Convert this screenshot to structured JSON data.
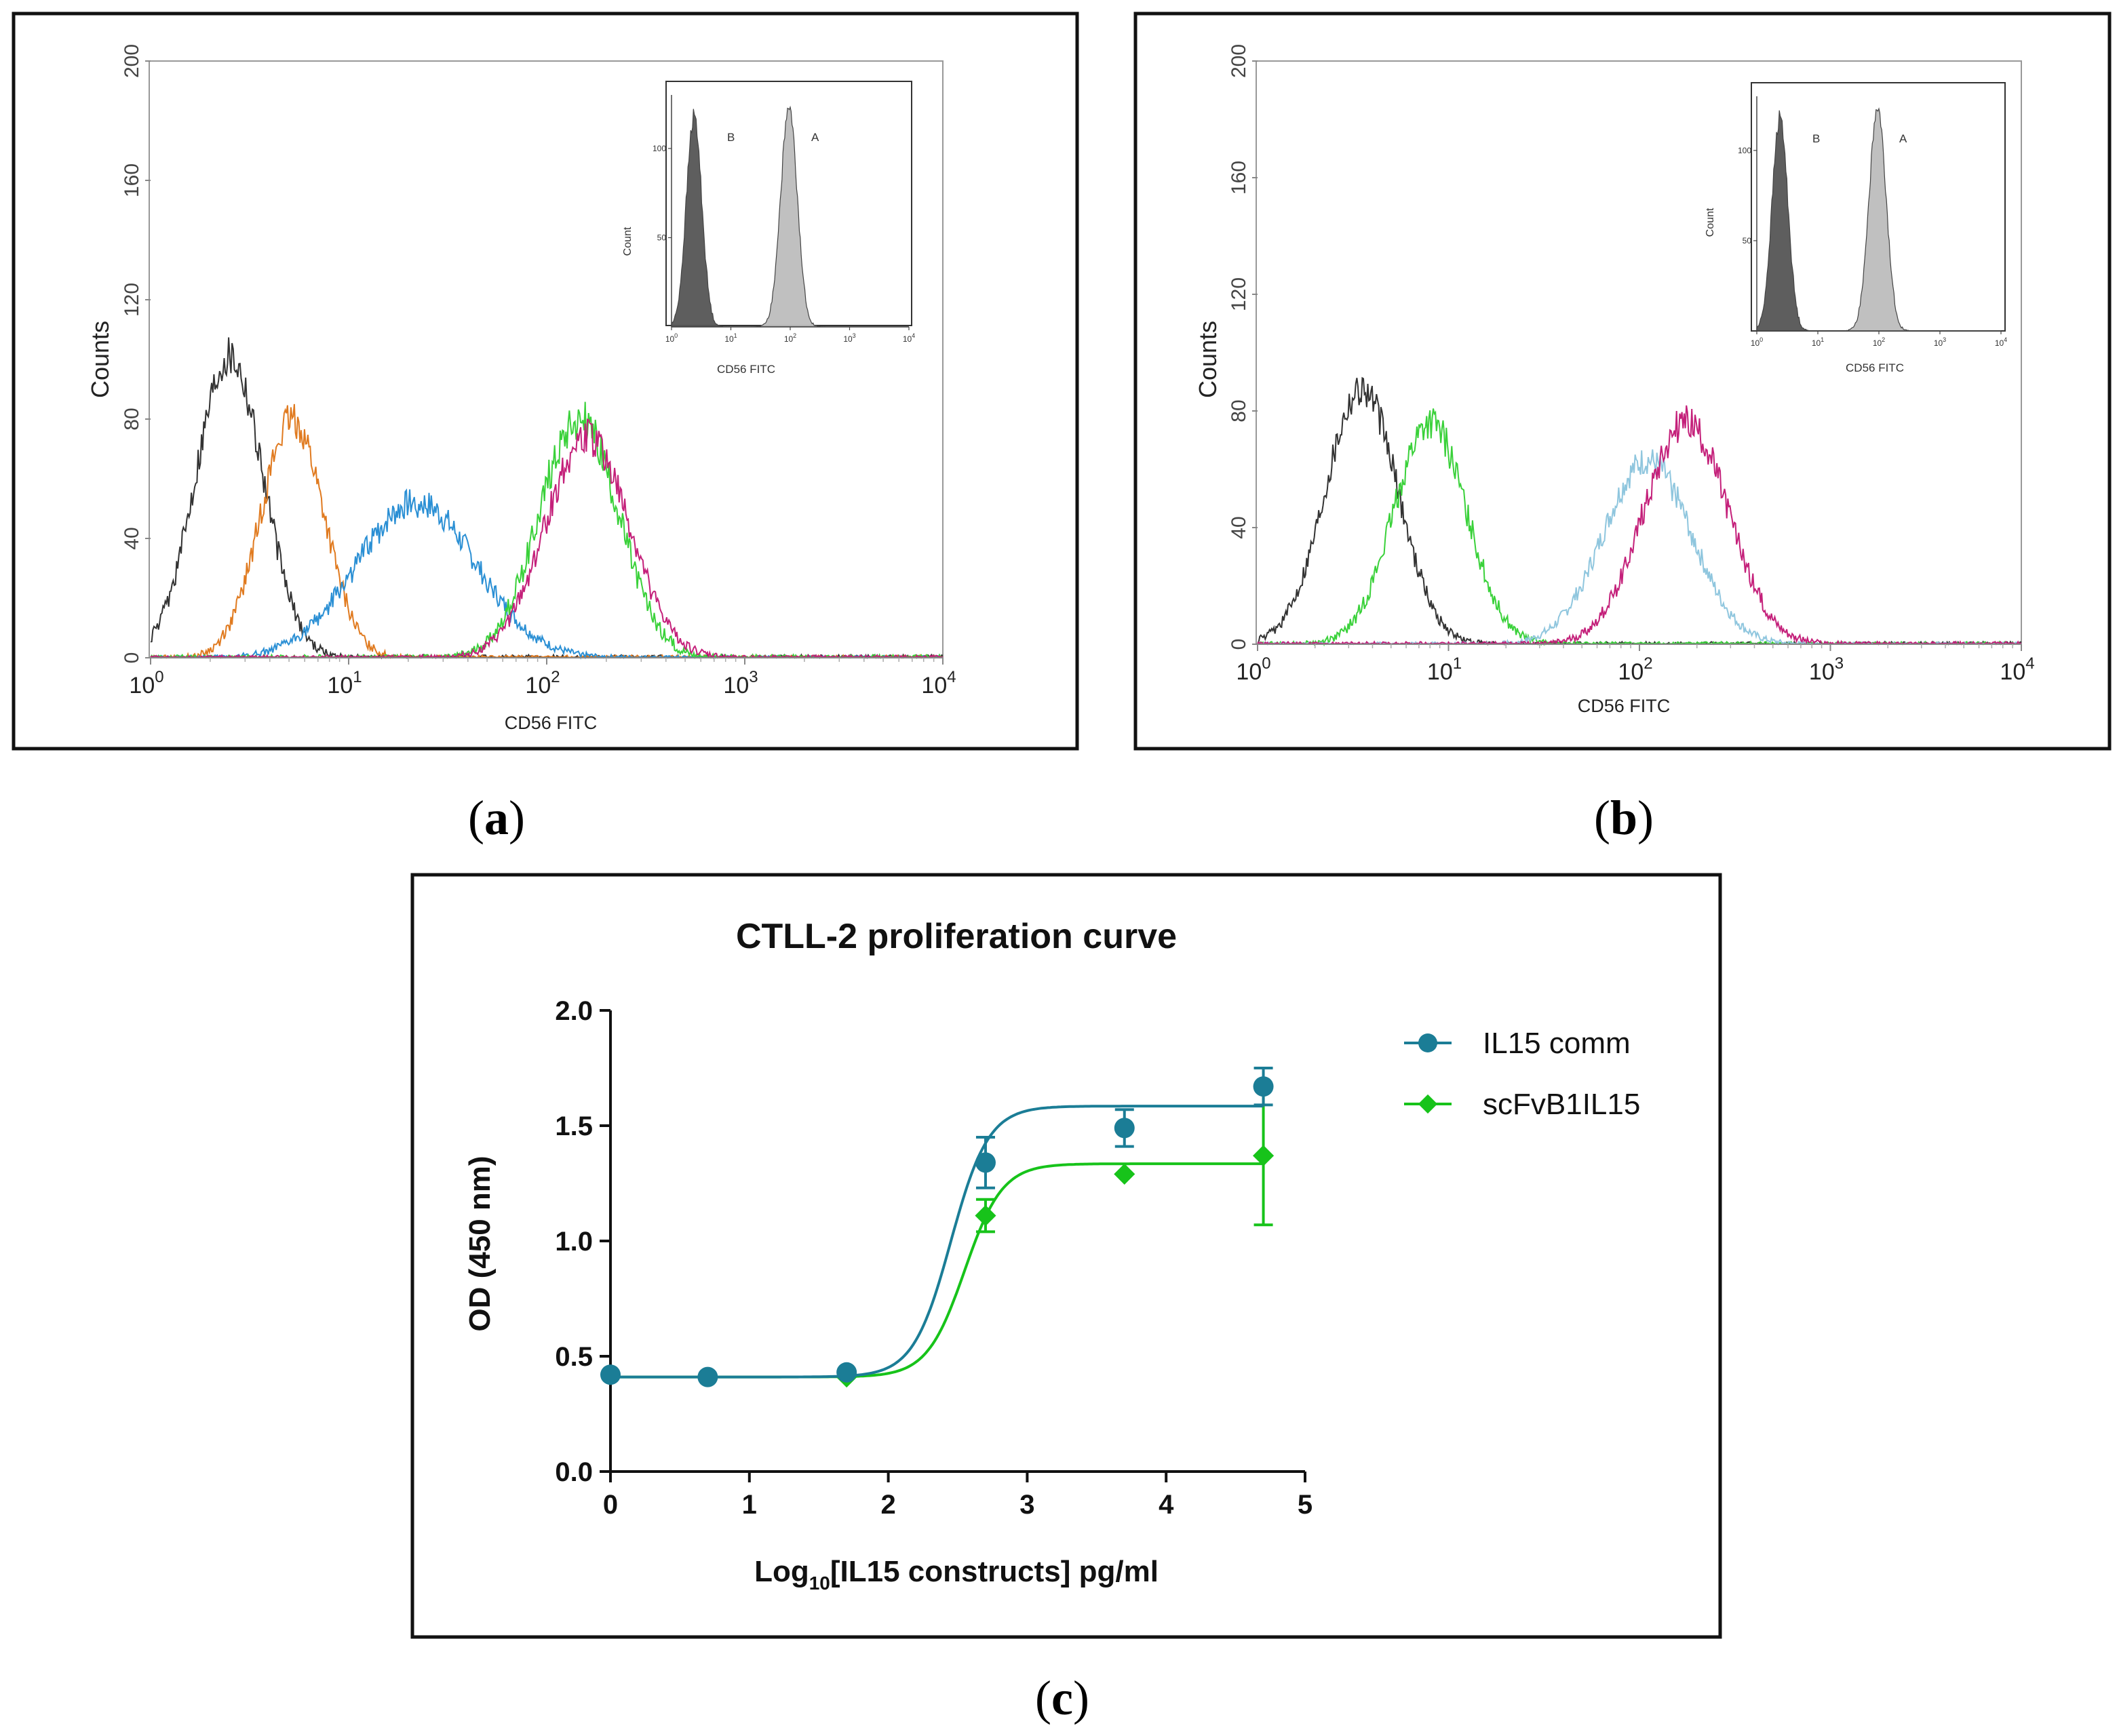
{
  "panels": {
    "a": {
      "label_open": "(",
      "label_letter": "a",
      "label_close": ")"
    },
    "b": {
      "label_open": "(",
      "label_letter": "b",
      "label_close": ")"
    },
    "c": {
      "label_open": "(",
      "label_letter": "c",
      "label_close": ")"
    }
  },
  "chart_data": [
    {
      "id": "a",
      "type": "line",
      "subtype": "flow-cytometry-histogram",
      "title": "",
      "xlabel": "CD56 FITC",
      "ylabel": "Counts",
      "xscale": "log",
      "xlim": [
        1,
        10000
      ],
      "ylim": [
        0,
        200
      ],
      "x_ticks": [
        {
          "base": "10",
          "exp": "0"
        },
        {
          "base": "10",
          "exp": "1"
        },
        {
          "base": "10",
          "exp": "2"
        },
        {
          "base": "10",
          "exp": "3"
        },
        {
          "base": "10",
          "exp": "4"
        }
      ],
      "y_ticks": [
        "0",
        "40",
        "80",
        "120",
        "160",
        "200"
      ],
      "y_tick_values": [
        0,
        40,
        80,
        120,
        160,
        200
      ],
      "series": [
        {
          "name": "black",
          "color": "#333333",
          "peak_x": 2.5,
          "peak_y": 102,
          "sigma_log": 0.17,
          "noise": 7
        },
        {
          "name": "orange",
          "color": "#e07a1f",
          "peak_x": 5.2,
          "peak_y": 80,
          "sigma_log": 0.16,
          "noise": 6
        },
        {
          "name": "blue",
          "color": "#2a8fd4",
          "peak_x": 22,
          "peak_y": 52,
          "sigma_log": 0.3,
          "noise": 5
        },
        {
          "name": "green",
          "color": "#3ad13a",
          "peak_x": 145,
          "peak_y": 80,
          "sigma_log": 0.2,
          "noise": 7
        },
        {
          "name": "magenta",
          "color": "#c4207a",
          "peak_x": 160,
          "peak_y": 74,
          "sigma_log": 0.21,
          "noise": 6
        }
      ],
      "inset": {
        "xlabel": "CD56 FITC",
        "ylabel": "Count",
        "y_ticks": [
          "50",
          "100"
        ],
        "y_tick_values": [
          50,
          100
        ],
        "ylim": [
          0,
          130
        ],
        "x_ticks": [
          {
            "base": "10",
            "exp": "0"
          },
          {
            "base": "10",
            "exp": "1"
          },
          {
            "base": "10",
            "exp": "2"
          },
          {
            "base": "10",
            "exp": "3"
          },
          {
            "base": "10",
            "exp": "4"
          }
        ],
        "series": [
          {
            "name": "B",
            "color": "#555555",
            "peak_x": 2.4,
            "peak_y": 118,
            "sigma_log": 0.13
          },
          {
            "name": "A",
            "color": "#bdbdbd",
            "peak_x": 95,
            "peak_y": 122,
            "sigma_log": 0.14
          }
        ]
      }
    },
    {
      "id": "b",
      "type": "line",
      "subtype": "flow-cytometry-histogram",
      "title": "",
      "xlabel": "CD56 FITC",
      "ylabel": "Counts",
      "xscale": "log",
      "xlim": [
        1,
        10000
      ],
      "ylim": [
        0,
        200
      ],
      "x_ticks": [
        {
          "base": "10",
          "exp": "0"
        },
        {
          "base": "10",
          "exp": "1"
        },
        {
          "base": "10",
          "exp": "2"
        },
        {
          "base": "10",
          "exp": "3"
        },
        {
          "base": "10",
          "exp": "4"
        }
      ],
      "y_ticks": [
        "0",
        "40",
        "80",
        "120",
        "160",
        "200"
      ],
      "y_tick_values": [
        0,
        40,
        80,
        120,
        160,
        200
      ],
      "series": [
        {
          "name": "black",
          "color": "#333333",
          "peak_x": 3.5,
          "peak_y": 88,
          "sigma_log": 0.19,
          "noise": 6
        },
        {
          "name": "green",
          "color": "#3ad13a",
          "peak_x": 8,
          "peak_y": 76,
          "sigma_log": 0.19,
          "noise": 6
        },
        {
          "name": "light-blue",
          "color": "#8fc6de",
          "peak_x": 110,
          "peak_y": 63,
          "sigma_log": 0.23,
          "noise": 5
        },
        {
          "name": "magenta",
          "color": "#c4207a",
          "peak_x": 175,
          "peak_y": 76,
          "sigma_log": 0.22,
          "noise": 6
        }
      ],
      "inset": {
        "xlabel": "CD56 FITC",
        "ylabel": "Count",
        "y_ticks": [
          "50",
          "100"
        ],
        "y_tick_values": [
          50,
          100
        ],
        "ylim": [
          0,
          130
        ],
        "x_ticks": [
          {
            "base": "10",
            "exp": "0"
          },
          {
            "base": "10",
            "exp": "1"
          },
          {
            "base": "10",
            "exp": "2"
          },
          {
            "base": "10",
            "exp": "3"
          },
          {
            "base": "10",
            "exp": "4"
          }
        ],
        "series": [
          {
            "name": "B",
            "color": "#555555",
            "peak_x": 2.4,
            "peak_y": 118,
            "sigma_log": 0.13
          },
          {
            "name": "A",
            "color": "#bdbdbd",
            "peak_x": 95,
            "peak_y": 122,
            "sigma_log": 0.14
          }
        ]
      }
    },
    {
      "id": "c",
      "type": "scatter",
      "title": "CTLL-2 proliferation curve",
      "xlabel_pre": "Log",
      "xlabel_sub": "10",
      "xlabel_post": "[IL15 constructs] pg/ml",
      "ylabel": "OD (450 nm)",
      "xlim": [
        0,
        5
      ],
      "ylim": [
        0,
        2
      ],
      "x_ticks": [
        "0",
        "1",
        "2",
        "3",
        "4",
        "5"
      ],
      "x_tick_values": [
        0,
        1,
        2,
        3,
        4,
        5
      ],
      "y_ticks": [
        "0.0",
        "0.5",
        "1.0",
        "1.5",
        "2.0"
      ],
      "y_tick_values": [
        0,
        0.5,
        1.0,
        1.5,
        2.0
      ],
      "legend_position": "top-right",
      "series": [
        {
          "name": "IL15 comm",
          "color": "#1b7d96",
          "marker": "circle",
          "x": [
            0,
            0.7,
            1.7,
            2.7,
            3.7,
            4.7
          ],
          "y": [
            0.42,
            0.41,
            0.43,
            1.34,
            1.49,
            1.67
          ],
          "err": [
            0,
            0,
            0,
            0.11,
            0.08,
            0.08
          ],
          "fit": {
            "bottom": 0.41,
            "top": 1.585,
            "logEC50": 2.45,
            "hill": 3.2
          }
        },
        {
          "name": "scFvB1IL15",
          "color": "#17c31a",
          "marker": "diamond",
          "x": [
            1.7,
            2.7,
            3.7,
            4.7
          ],
          "y": [
            0.41,
            1.11,
            1.29,
            1.37
          ],
          "err": [
            0,
            0.07,
            0,
            0.3
          ],
          "fit": {
            "bottom": 0.41,
            "top": 1.335,
            "logEC50": 2.55,
            "hill": 3.2
          }
        }
      ]
    }
  ]
}
